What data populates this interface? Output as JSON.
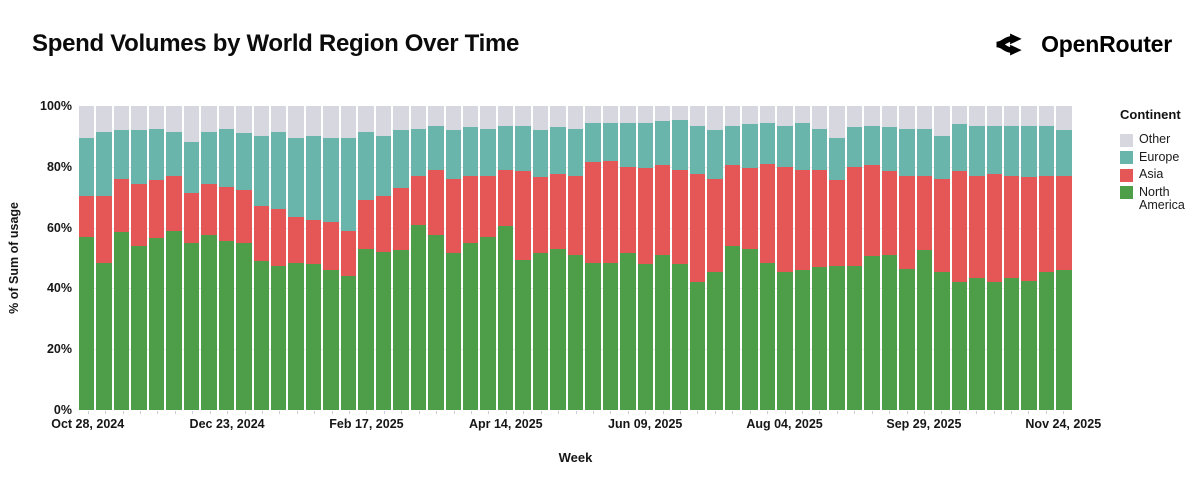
{
  "header": {
    "title": "Spend Volumes by World Region Over Time",
    "brand": "OpenRouter"
  },
  "chart_data": {
    "type": "bar",
    "stacked": true,
    "normalized_percent": true,
    "title": "Spend Volumes by World Region Over Time",
    "xlabel": "Week",
    "ylabel": "% of Sum of usage",
    "ylim": [
      0,
      100
    ],
    "yticks": [
      "0%",
      "20%",
      "40%",
      "60%",
      "80%",
      "100%"
    ],
    "grid_values": [
      20,
      40,
      60,
      80
    ],
    "legend": {
      "title": "Continent",
      "position": "right",
      "entries": [
        {
          "label": "Other",
          "color": "#d7d7e0"
        },
        {
          "label": "Europe",
          "color": "#69b4ab"
        },
        {
          "label": "Asia",
          "color": "#e45756"
        },
        {
          "label": "North America",
          "color": "#4d9d49"
        }
      ]
    },
    "categories": [
      "Oct 28, 2024",
      "Nov 04, 2024",
      "Nov 11, 2024",
      "Nov 18, 2024",
      "Nov 25, 2024",
      "Dec 02, 2024",
      "Dec 09, 2024",
      "Dec 16, 2024",
      "Dec 23, 2024",
      "Dec 30, 2024",
      "Jan 06, 2025",
      "Jan 13, 2025",
      "Jan 20, 2025",
      "Jan 27, 2025",
      "Feb 03, 2025",
      "Feb 10, 2025",
      "Feb 17, 2025",
      "Feb 24, 2025",
      "Mar 03, 2025",
      "Mar 10, 2025",
      "Mar 17, 2025",
      "Mar 24, 2025",
      "Mar 31, 2025",
      "Apr 07, 2025",
      "Apr 14, 2025",
      "Apr 21, 2025",
      "Apr 28, 2025",
      "May 05, 2025",
      "May 12, 2025",
      "May 19, 2025",
      "May 26, 2025",
      "Jun 02, 2025",
      "Jun 09, 2025",
      "Jun 16, 2025",
      "Jun 23, 2025",
      "Jun 30, 2025",
      "Jul 07, 2025",
      "Jul 14, 2025",
      "Jul 21, 2025",
      "Jul 28, 2025",
      "Aug 04, 2025",
      "Aug 11, 2025",
      "Aug 18, 2025",
      "Aug 25, 2025",
      "Sep 01, 2025",
      "Sep 08, 2025",
      "Sep 15, 2025",
      "Sep 22, 2025",
      "Sep 29, 2025",
      "Oct 06, 2025",
      "Oct 13, 2025",
      "Oct 20, 2025",
      "Oct 27, 2025",
      "Nov 03, 2025",
      "Nov 10, 2025",
      "Nov 17, 2025",
      "Nov 24, 2025"
    ],
    "x_tick_indices": [
      0,
      8,
      16,
      24,
      32,
      40,
      48,
      56
    ],
    "x_tick_labels": [
      "Oct 28, 2024",
      "Dec 23, 2024",
      "Feb 17, 2025",
      "Apr 14, 2025",
      "Jun 09, 2025",
      "Aug 04, 2025",
      "Sep 29, 2025",
      "Nov 24, 2025"
    ],
    "series": [
      {
        "name": "North America",
        "color": "#4d9d49",
        "values": [
          57,
          48.5,
          58.5,
          54,
          56.5,
          59,
          55,
          57.5,
          55.5,
          55,
          49,
          47.5,
          48.5,
          48,
          46,
          44,
          53,
          52,
          52.5,
          61,
          57.5,
          51.5,
          55,
          57,
          60.5,
          49.5,
          51.5,
          53,
          51,
          48.5,
          48.5,
          51.5,
          48,
          51,
          48,
          42,
          45.5,
          54,
          53,
          48.5,
          45.5,
          46,
          47,
          47.5,
          47.5,
          50.5,
          51,
          46.5,
          52.5,
          45.5,
          42,
          43.5,
          42,
          43.5,
          42.5,
          45.5,
          46
        ]
      },
      {
        "name": "Asia",
        "color": "#e45756",
        "values": [
          13.5,
          22,
          17.5,
          20.5,
          19,
          18,
          16.5,
          17,
          18,
          17.5,
          18,
          18.5,
          15,
          14.5,
          16,
          15,
          16,
          18.5,
          20.5,
          16,
          21.5,
          24.5,
          22,
          20,
          18.5,
          29,
          25,
          24.5,
          26,
          33,
          33.5,
          28.5,
          31.5,
          29.5,
          31,
          35.5,
          30.5,
          26.5,
          26.5,
          32.5,
          34.5,
          33,
          32,
          28,
          32.5,
          30,
          27.5,
          30.5,
          24.5,
          30.5,
          36.5,
          33.5,
          35.5,
          33.5,
          34,
          31.5,
          31
        ]
      },
      {
        "name": "Europe",
        "color": "#69b4ab",
        "values": [
          19,
          21,
          16,
          17.5,
          17,
          14.5,
          16.5,
          17,
          19,
          18.5,
          23,
          25.5,
          26,
          27.5,
          27.5,
          30.5,
          22.5,
          19.5,
          19,
          15.5,
          14.5,
          16,
          16,
          15.5,
          14.5,
          15,
          15.5,
          15.5,
          15.5,
          13,
          12.5,
          14.5,
          15,
          14.5,
          16.5,
          16,
          16,
          13,
          14.5,
          13.5,
          13.5,
          15.5,
          13.5,
          14,
          13,
          13,
          14.5,
          15.5,
          15.5,
          14,
          15.5,
          16.5,
          16,
          16.5,
          17,
          16.5,
          15
        ]
      },
      {
        "name": "Other",
        "color": "#d7d7e0",
        "values": [
          10.5,
          8.5,
          8,
          8,
          7.5,
          8.5,
          12,
          8.5,
          7.5,
          9,
          10,
          8.5,
          10.5,
          10,
          10.5,
          10.5,
          8.5,
          10,
          8,
          7.5,
          6.5,
          8,
          7,
          7.5,
          6.5,
          6.5,
          8,
          7,
          7.5,
          5.5,
          5.5,
          5.5,
          5.5,
          5,
          4.5,
          6.5,
          8,
          6.5,
          6,
          5.5,
          6.5,
          5.5,
          7.5,
          10.5,
          7,
          6.5,
          7,
          7.5,
          7.5,
          10,
          6,
          6.5,
          6.5,
          6.5,
          6.5,
          6.5,
          8
        ]
      }
    ]
  }
}
